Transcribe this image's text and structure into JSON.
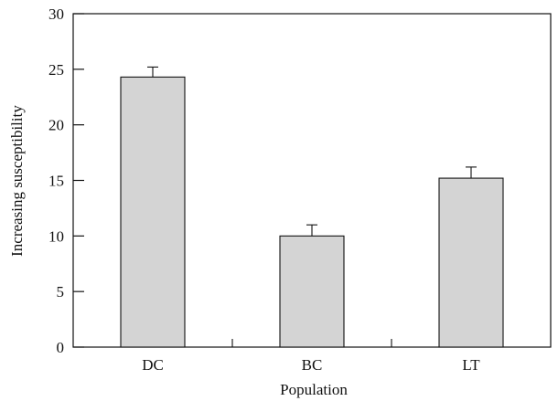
{
  "chart_data": {
    "type": "bar",
    "title": "",
    "xlabel": "Population",
    "ylabel": "Increasing susceptibility",
    "categories": [
      "DC",
      "BC",
      "LT"
    ],
    "values": [
      24.3,
      10.0,
      15.2
    ],
    "errors": [
      0.9,
      1.0,
      1.0
    ],
    "ylim": [
      0,
      30
    ],
    "yticks": [
      "0",
      "5",
      "10",
      "15",
      "20",
      "25",
      "30"
    ],
    "grid": false,
    "legend": "none",
    "bar_color": "#d4d4d4",
    "edge_color": "#111111"
  }
}
